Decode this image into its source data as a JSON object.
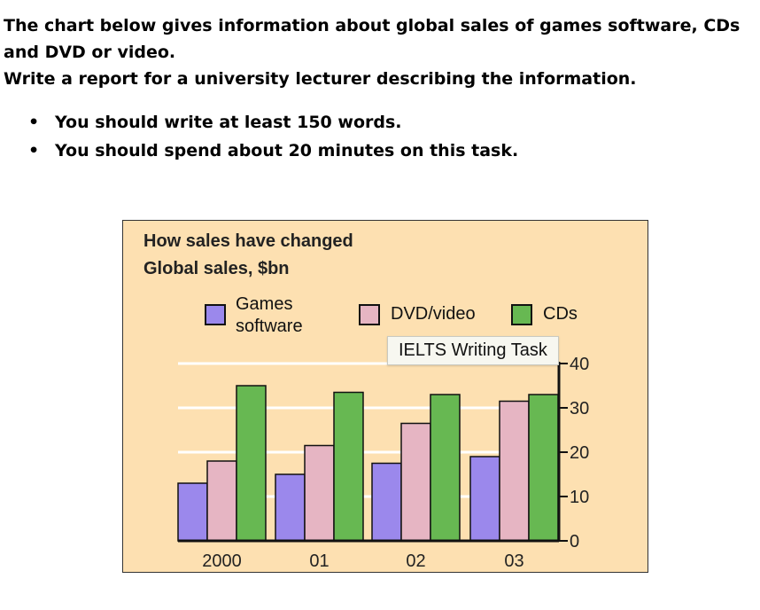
{
  "intro": {
    "line1": "The chart below gives information about global sales of games software, CDs and DVD or video.",
    "line2": "Write a report for a university lecturer describing the information."
  },
  "bullets": [
    "You should write at least 150 words.",
    "You should spend about 20 minutes on this task."
  ],
  "tooltip": "IELTS Writing Task",
  "chart_data": {
    "type": "bar",
    "title": "How sales have changed",
    "subtitle": "Global sales, $bn",
    "categories": [
      "2000",
      "01",
      "02",
      "03"
    ],
    "series": [
      {
        "name": "Games software",
        "values": [
          13,
          15,
          17.5,
          19
        ],
        "color": "#9b88ec"
      },
      {
        "name": "DVD/video",
        "values": [
          18,
          21.5,
          26.5,
          31.5
        ],
        "color": "#e6b5c3"
      },
      {
        "name": "CDs",
        "values": [
          35,
          33.5,
          33,
          33
        ],
        "color": "#67b852"
      }
    ],
    "ylim": [
      0,
      40
    ],
    "yticks": [
      "0",
      "10",
      "20",
      "30",
      "40"
    ],
    "legend_position": "top",
    "y_axis_side": "right",
    "grid": true,
    "panel_color": "#fde0b1"
  }
}
